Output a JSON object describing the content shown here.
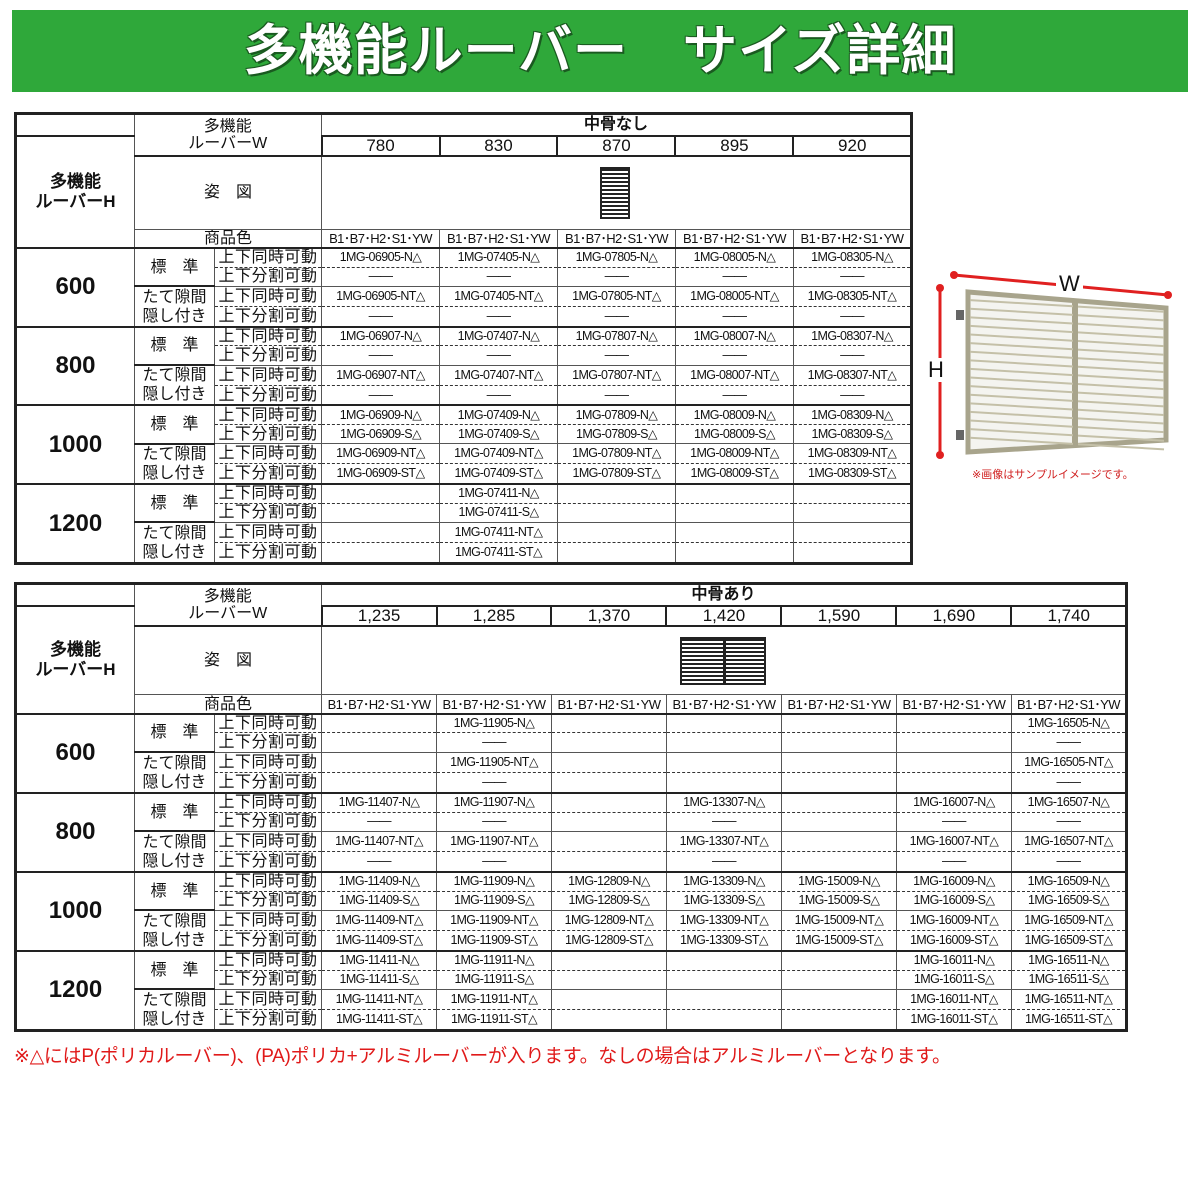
{
  "title": "多機能ルーバー　サイズ詳細",
  "colors": {
    "banner": "#2fa83a",
    "note": "#e01a1a"
  },
  "labels": {
    "w_header": [
      "多機能",
      "ルーバーW"
    ],
    "h_header": [
      "多機能",
      "ルーバーH"
    ],
    "figure": "姿　図",
    "color": "商品色",
    "types": [
      "標　準",
      [
        "たて隙間",
        "隠し付き"
      ]
    ],
    "moves": [
      "上下同時可動",
      "上下分割可動"
    ]
  },
  "tables": [
    {
      "group": "中骨なし",
      "widths": [
        "780",
        "830",
        "870",
        "895",
        "920"
      ],
      "figure_icon": "louver-single-panel-icon",
      "figure_col": 2,
      "colors": [
        "B1･B7･H2･S1･YW",
        "B1･B7･H2･S1･YW",
        "B1･B7･H2･S1･YW",
        "B1･B7･H2･S1･YW",
        "B1･B7･H2･S1･YW"
      ],
      "heights": [
        {
          "h": "600",
          "rows": [
            [
              "1MG-06905-N△",
              "1MG-07405-N△",
              "1MG-07805-N△",
              "1MG-08005-N△",
              "1MG-08305-N△"
            ],
            [
              "——",
              "——",
              "——",
              "——",
              "——"
            ],
            [
              "1MG-06905-NT△",
              "1MG-07405-NT△",
              "1MG-07805-NT△",
              "1MG-08005-NT△",
              "1MG-08305-NT△"
            ],
            [
              "——",
              "——",
              "——",
              "——",
              "——"
            ]
          ]
        },
        {
          "h": "800",
          "rows": [
            [
              "1MG-06907-N△",
              "1MG-07407-N△",
              "1MG-07807-N△",
              "1MG-08007-N△",
              "1MG-08307-N△"
            ],
            [
              "——",
              "——",
              "——",
              "——",
              "——"
            ],
            [
              "1MG-06907-NT△",
              "1MG-07407-NT△",
              "1MG-07807-NT△",
              "1MG-08007-NT△",
              "1MG-08307-NT△"
            ],
            [
              "——",
              "——",
              "——",
              "——",
              "——"
            ]
          ]
        },
        {
          "h": "1000",
          "rows": [
            [
              "1MG-06909-N△",
              "1MG-07409-N△",
              "1MG-07809-N△",
              "1MG-08009-N△",
              "1MG-08309-N△"
            ],
            [
              "1MG-06909-S△",
              "1MG-07409-S△",
              "1MG-07809-S△",
              "1MG-08009-S△",
              "1MG-08309-S△"
            ],
            [
              "1MG-06909-NT△",
              "1MG-07409-NT△",
              "1MG-07809-NT△",
              "1MG-08009-NT△",
              "1MG-08309-NT△"
            ],
            [
              "1MG-06909-ST△",
              "1MG-07409-ST△",
              "1MG-07809-ST△",
              "1MG-08009-ST△",
              "1MG-08309-ST△"
            ]
          ]
        },
        {
          "h": "1200",
          "rows": [
            [
              "",
              "1MG-07411-N△",
              "",
              "",
              ""
            ],
            [
              "",
              "1MG-07411-S△",
              "",
              "",
              ""
            ],
            [
              "",
              "1MG-07411-NT△",
              "",
              "",
              ""
            ],
            [
              "",
              "1MG-07411-ST△",
              "",
              "",
              ""
            ]
          ]
        }
      ]
    },
    {
      "group": "中骨あり",
      "widths": [
        "1,235",
        "1,285",
        "1,370",
        "1,420",
        "1,590",
        "1,690",
        "1,740"
      ],
      "figure_icon": "louver-double-panel-icon",
      "figure_col": 3,
      "colors": [
        "B1･B7･H2･S1･YW",
        "B1･B7･H2･S1･YW",
        "B1･B7･H2･S1･YW",
        "B1･B7･H2･S1･YW",
        "B1･B7･H2･S1･YW",
        "B1･B7･H2･S1･YW",
        "B1･B7･H2･S1･YW"
      ],
      "heights": [
        {
          "h": "600",
          "rows": [
            [
              "",
              "1MG-11905-N△",
              "",
              "",
              "",
              "",
              "1MG-16505-N△"
            ],
            [
              "",
              "——",
              "",
              "",
              "",
              "",
              "——"
            ],
            [
              "",
              "1MG-11905-NT△",
              "",
              "",
              "",
              "",
              "1MG-16505-NT△"
            ],
            [
              "",
              "——",
              "",
              "",
              "",
              "",
              "——"
            ]
          ]
        },
        {
          "h": "800",
          "rows": [
            [
              "1MG-11407-N△",
              "1MG-11907-N△",
              "",
              "1MG-13307-N△",
              "",
              "1MG-16007-N△",
              "1MG-16507-N△"
            ],
            [
              "——",
              "——",
              "",
              "——",
              "",
              "——",
              "——"
            ],
            [
              "1MG-11407-NT△",
              "1MG-11907-NT△",
              "",
              "1MG-13307-NT△",
              "",
              "1MG-16007-NT△",
              "1MG-16507-NT△"
            ],
            [
              "——",
              "——",
              "",
              "——",
              "",
              "——",
              "——"
            ]
          ]
        },
        {
          "h": "1000",
          "rows": [
            [
              "1MG-11409-N△",
              "1MG-11909-N△",
              "1MG-12809-N△",
              "1MG-13309-N△",
              "1MG-15009-N△",
              "1MG-16009-N△",
              "1MG-16509-N△"
            ],
            [
              "1MG-11409-S△",
              "1MG-11909-S△",
              "1MG-12809-S△",
              "1MG-13309-S△",
              "1MG-15009-S△",
              "1MG-16009-S△",
              "1MG-16509-S△"
            ],
            [
              "1MG-11409-NT△",
              "1MG-11909-NT△",
              "1MG-12809-NT△",
              "1MG-13309-NT△",
              "1MG-15009-NT△",
              "1MG-16009-NT△",
              "1MG-16509-NT△"
            ],
            [
              "1MG-11409-ST△",
              "1MG-11909-ST△",
              "1MG-12809-ST△",
              "1MG-13309-ST△",
              "1MG-15009-ST△",
              "1MG-16009-ST△",
              "1MG-16509-ST△"
            ]
          ]
        },
        {
          "h": "1200",
          "rows": [
            [
              "1MG-11411-N△",
              "1MG-11911-N△",
              "",
              "",
              "",
              "1MG-16011-N△",
              "1MG-16511-N△"
            ],
            [
              "1MG-11411-S△",
              "1MG-11911-S△",
              "",
              "",
              "",
              "1MG-16011-S△",
              "1MG-16511-S△"
            ],
            [
              "1MG-11411-NT△",
              "1MG-11911-NT△",
              "",
              "",
              "",
              "1MG-16011-NT△",
              "1MG-16511-NT△"
            ],
            [
              "1MG-11411-ST△",
              "1MG-11911-ST△",
              "",
              "",
              "",
              "1MG-16011-ST△",
              "1MG-16511-ST△"
            ]
          ]
        }
      ]
    }
  ],
  "sample_image": {
    "w_label": "W",
    "h_label": "H",
    "note": "※画像はサンプルイメージです。"
  },
  "footnote": "※△にはP(ポリカルーバー)、(PA)ポリカ+アルミルーバーが入ります。なしの場合はアルミルーバーとなります。"
}
